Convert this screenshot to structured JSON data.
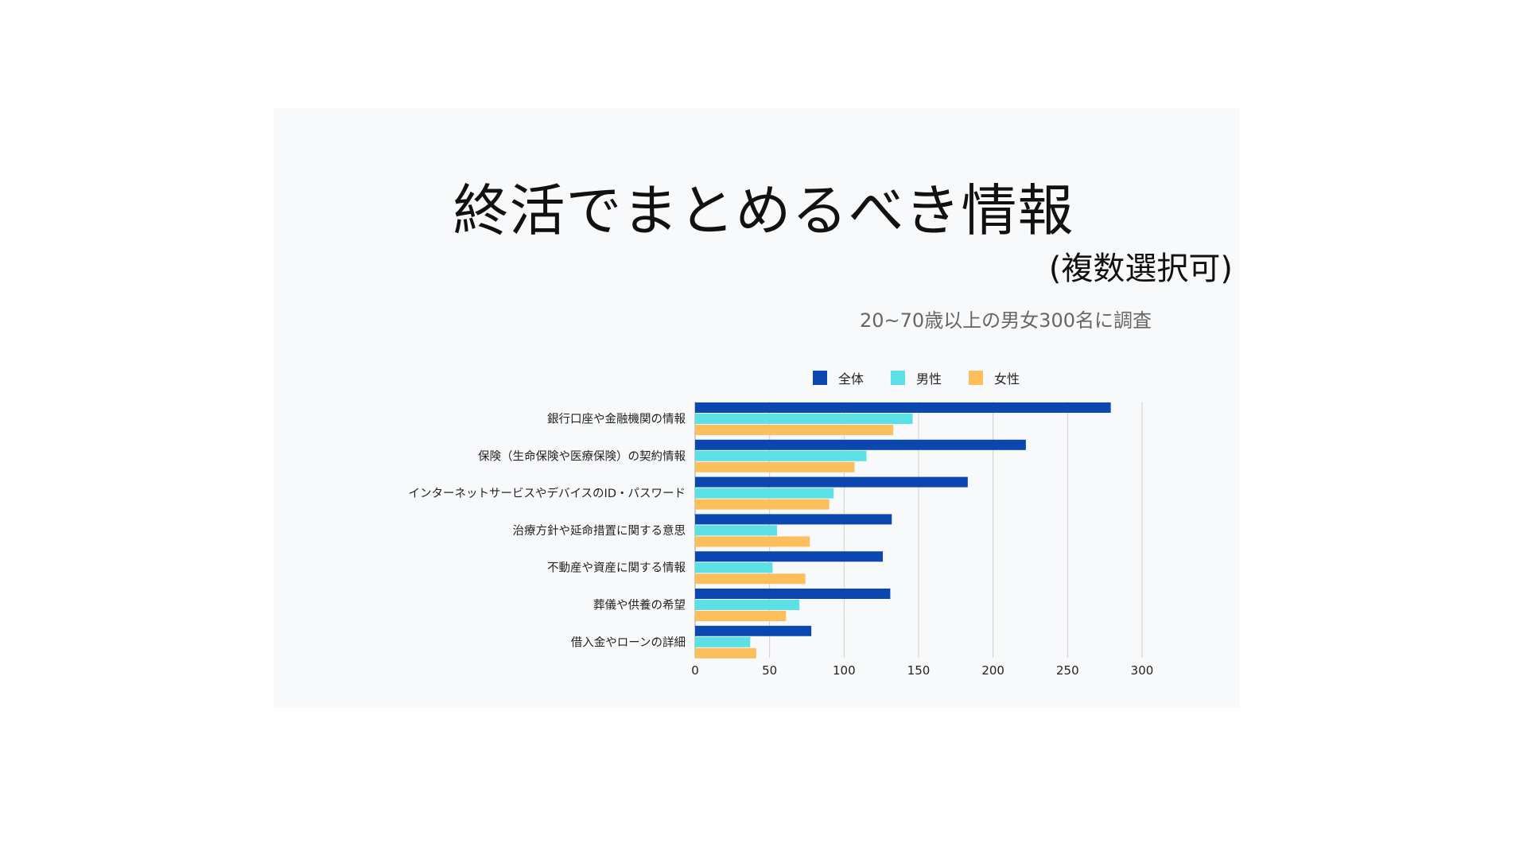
{
  "page": {
    "title": "終活でまとめるべき情報",
    "subtitle": "(複数選択可)",
    "survey_note": "20~70歳以上の男女300名に調査"
  },
  "colors": {
    "series_all": "#0c47b0",
    "series_male": "#5ce0e6",
    "series_female": "#fcbf5c",
    "grid": "#cfcfcf",
    "text": "#222222"
  },
  "chart_data": {
    "type": "bar",
    "orientation": "horizontal",
    "title": "",
    "xlabel": "",
    "ylabel": "",
    "categories": [
      "銀行口座や金融機関の情報",
      "保険（生命保険や医療保険）の契約情報",
      "インターネットサービスやデバイスのID・パスワード",
      "治療方針や延命措置に関する意思",
      "不動産や資産に関する情報",
      "葬儀や供養の希望",
      "借入金やローンの詳細"
    ],
    "series": [
      {
        "name": "全体",
        "values": [
          279,
          222,
          183,
          132,
          126,
          131,
          78
        ]
      },
      {
        "name": "男性",
        "values": [
          146,
          115,
          93,
          55,
          52,
          70,
          37
        ]
      },
      {
        "name": "女性",
        "values": [
          133,
          107,
          90,
          77,
          74,
          61,
          41
        ]
      }
    ],
    "xlim": [
      0,
      300
    ],
    "xticks": [
      0,
      50,
      100,
      150,
      200,
      250,
      300
    ],
    "grid": true,
    "legend_position": "top-center"
  }
}
